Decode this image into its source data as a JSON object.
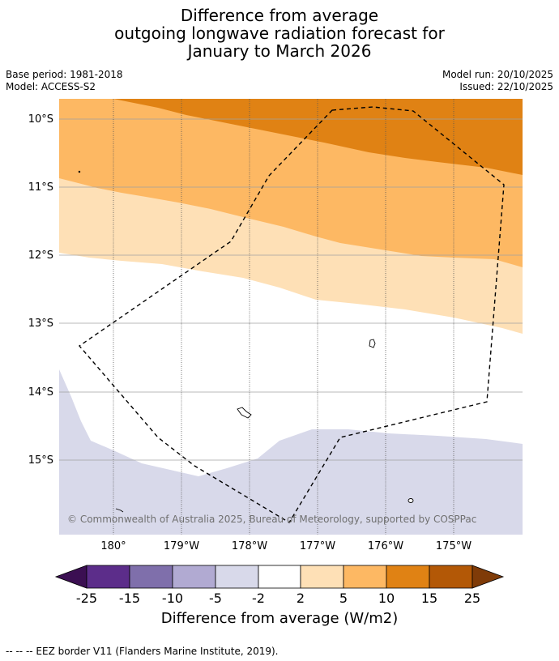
{
  "title_lines": [
    "Difference from average",
    "outgoing longwave radiation forecast for",
    "January to March 2026"
  ],
  "base_period": "Base period: 1981-2018",
  "model": "Model: ACCESS-S2",
  "model_run": "Model run: 20/10/2025",
  "issued": "Issued: 22/10/2025",
  "lat_labels": [
    "10°S",
    "11°S",
    "12°S",
    "13°S",
    "14°S",
    "15°S"
  ],
  "lon_labels": [
    "180°",
    "179°W",
    "178°W",
    "177°W",
    "176°W",
    "175°W"
  ],
  "copyright": "© Commonwealth of Australia 2025, Bureau of Meteorology, supported by COSPPac",
  "colorbar": {
    "ticks": [
      "-25",
      "-15",
      "-10",
      "-5",
      "-2",
      "2",
      "5",
      "10",
      "15",
      "25"
    ],
    "colors": {
      "lt_neg25": "#3b0f52",
      "neg25_neg15": "#5c2d8a",
      "neg15_neg10": "#7f6fab",
      "neg10_neg5": "#b1aad2",
      "neg5_neg2": "#d8d9ea",
      "neg2_2": "#ffffff",
      "2_5": "#fee0b6",
      "5_10": "#fdb863",
      "10_15": "#e08214",
      "15_25": "#b35806",
      "gt_25": "#7f3b08"
    },
    "title": "Difference from average (W/m2)"
  },
  "footnote": "--  --  -- EEZ border V11 (Flanders Marine Institute, 2019)."
}
